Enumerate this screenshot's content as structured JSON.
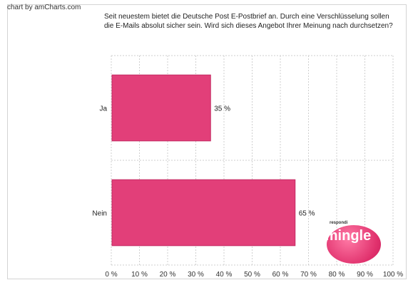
{
  "credit": "chart by amCharts.com",
  "logo": {
    "small": "respondi",
    "word": "mingle"
  },
  "colors": {
    "bar": "#e23f79",
    "bar_stroke": "#c42a62",
    "grid": "#cfcfcf"
  },
  "chart_data": {
    "type": "bar",
    "orientation": "horizontal",
    "title": "Seit neuestem bietet die Deutsche Post E-Postbrief an. Durch eine Verschlüsselung sollen die E-Mails absolut sicher sein. Wird sich dieses Angebot Ihrer Meinung nach durchsetzen?",
    "categories": [
      "Ja",
      "Nein"
    ],
    "values": [
      35,
      65
    ],
    "value_labels": [
      "35 %",
      "65 %"
    ],
    "xlim": [
      0,
      100
    ],
    "xticks": [
      "0 %",
      "10 %",
      "20 %",
      "30 %",
      "40 %",
      "50 %",
      "60 %",
      "70 %",
      "80 %",
      "90 %",
      "100 %"
    ],
    "grid": true
  }
}
